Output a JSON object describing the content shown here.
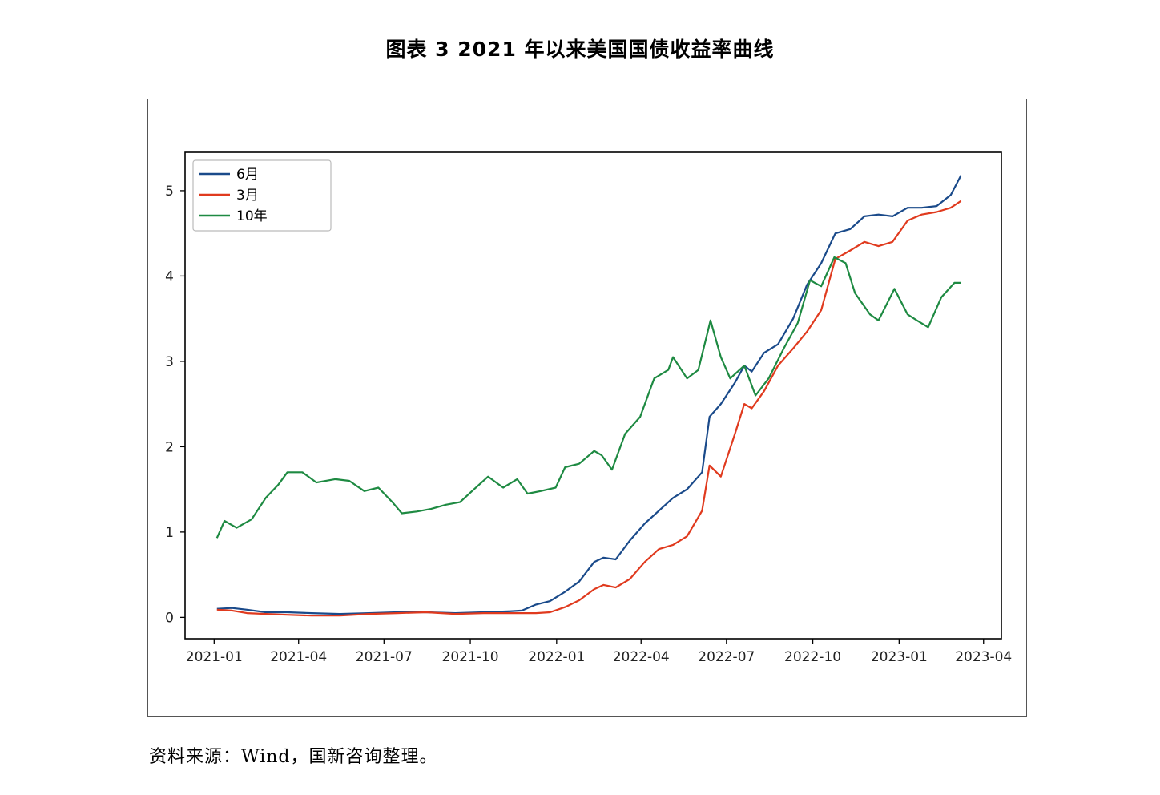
{
  "figure_title": "图表 3 2021 年以来美国国债收益率曲线",
  "source_note": "资料来源：Wind，国新咨询整理。",
  "colors": {
    "6m": "#1a4a8a",
    "3m": "#e03a1e",
    "10y": "#1e8a42"
  },
  "chart_data": {
    "type": "line",
    "title": "",
    "xlabel": "",
    "ylabel": "",
    "x_axis_type": "date",
    "xlim": [
      "2020-12-01",
      "2023-04-20"
    ],
    "ylim": [
      -0.25,
      5.45
    ],
    "x_ticks": [
      {
        "date": "2021-01-01",
        "label": "2021-01"
      },
      {
        "date": "2021-04-01",
        "label": "2021-04"
      },
      {
        "date": "2021-07-01",
        "label": "2021-07"
      },
      {
        "date": "2021-10-01",
        "label": "2021-10"
      },
      {
        "date": "2022-01-01",
        "label": "2022-01"
      },
      {
        "date": "2022-04-01",
        "label": "2022-04"
      },
      {
        "date": "2022-07-01",
        "label": "2022-07"
      },
      {
        "date": "2022-10-01",
        "label": "2022-10"
      },
      {
        "date": "2023-01-01",
        "label": "2023-01"
      },
      {
        "date": "2023-04-01",
        "label": "2023-04"
      }
    ],
    "y_ticks": [
      {
        "value": 0,
        "label": "0"
      },
      {
        "value": 1,
        "label": "1"
      },
      {
        "value": 2,
        "label": "2"
      },
      {
        "value": 3,
        "label": "3"
      },
      {
        "value": 4,
        "label": "4"
      },
      {
        "value": 5,
        "label": "5"
      }
    ],
    "grid": false,
    "legend_position": "top-left",
    "series": [
      {
        "name": "6月",
        "color_key": "6m",
        "points": [
          [
            "2021-01-04",
            0.1
          ],
          [
            "2021-01-20",
            0.11
          ],
          [
            "2021-02-05",
            0.09
          ],
          [
            "2021-02-25",
            0.06
          ],
          [
            "2021-03-20",
            0.06
          ],
          [
            "2021-04-15",
            0.05
          ],
          [
            "2021-05-15",
            0.04
          ],
          [
            "2021-06-15",
            0.05
          ],
          [
            "2021-07-15",
            0.06
          ],
          [
            "2021-08-15",
            0.06
          ],
          [
            "2021-09-15",
            0.05
          ],
          [
            "2021-10-15",
            0.06
          ],
          [
            "2021-11-10",
            0.07
          ],
          [
            "2021-11-25",
            0.08
          ],
          [
            "2021-12-10",
            0.15
          ],
          [
            "2021-12-25",
            0.19
          ],
          [
            "2022-01-10",
            0.3
          ],
          [
            "2022-01-25",
            0.42
          ],
          [
            "2022-02-10",
            0.65
          ],
          [
            "2022-02-20",
            0.7
          ],
          [
            "2022-03-05",
            0.68
          ],
          [
            "2022-03-20",
            0.9
          ],
          [
            "2022-04-05",
            1.1
          ],
          [
            "2022-04-20",
            1.25
          ],
          [
            "2022-05-05",
            1.4
          ],
          [
            "2022-05-20",
            1.5
          ],
          [
            "2022-06-05",
            1.7
          ],
          [
            "2022-06-13",
            2.35
          ],
          [
            "2022-06-25",
            2.5
          ],
          [
            "2022-07-10",
            2.75
          ],
          [
            "2022-07-20",
            2.95
          ],
          [
            "2022-07-28",
            2.88
          ],
          [
            "2022-08-10",
            3.1
          ],
          [
            "2022-08-25",
            3.2
          ],
          [
            "2022-09-10",
            3.5
          ],
          [
            "2022-09-25",
            3.9
          ],
          [
            "2022-10-10",
            4.15
          ],
          [
            "2022-10-25",
            4.5
          ],
          [
            "2022-11-10",
            4.55
          ],
          [
            "2022-11-25",
            4.7
          ],
          [
            "2022-12-10",
            4.72
          ],
          [
            "2022-12-25",
            4.7
          ],
          [
            "2023-01-10",
            4.8
          ],
          [
            "2023-01-25",
            4.8
          ],
          [
            "2023-02-10",
            4.82
          ],
          [
            "2023-02-25",
            4.95
          ],
          [
            "2023-03-08",
            5.18
          ]
        ]
      },
      {
        "name": "3月",
        "color_key": "3m",
        "points": [
          [
            "2021-01-04",
            0.09
          ],
          [
            "2021-01-20",
            0.08
          ],
          [
            "2021-02-05",
            0.05
          ],
          [
            "2021-02-25",
            0.04
          ],
          [
            "2021-03-20",
            0.03
          ],
          [
            "2021-04-15",
            0.02
          ],
          [
            "2021-05-15",
            0.02
          ],
          [
            "2021-06-15",
            0.04
          ],
          [
            "2021-07-15",
            0.05
          ],
          [
            "2021-08-15",
            0.06
          ],
          [
            "2021-09-15",
            0.04
          ],
          [
            "2021-10-15",
            0.05
          ],
          [
            "2021-11-10",
            0.05
          ],
          [
            "2021-11-25",
            0.05
          ],
          [
            "2021-12-10",
            0.05
          ],
          [
            "2021-12-25",
            0.06
          ],
          [
            "2022-01-10",
            0.12
          ],
          [
            "2022-01-25",
            0.2
          ],
          [
            "2022-02-10",
            0.33
          ],
          [
            "2022-02-20",
            0.38
          ],
          [
            "2022-03-05",
            0.35
          ],
          [
            "2022-03-20",
            0.45
          ],
          [
            "2022-04-05",
            0.65
          ],
          [
            "2022-04-20",
            0.8
          ],
          [
            "2022-05-05",
            0.85
          ],
          [
            "2022-05-20",
            0.95
          ],
          [
            "2022-06-05",
            1.25
          ],
          [
            "2022-06-13",
            1.78
          ],
          [
            "2022-06-25",
            1.65
          ],
          [
            "2022-07-10",
            2.15
          ],
          [
            "2022-07-20",
            2.5
          ],
          [
            "2022-07-28",
            2.45
          ],
          [
            "2022-08-10",
            2.65
          ],
          [
            "2022-08-25",
            2.95
          ],
          [
            "2022-09-10",
            3.15
          ],
          [
            "2022-09-25",
            3.35
          ],
          [
            "2022-10-10",
            3.6
          ],
          [
            "2022-10-25",
            4.2
          ],
          [
            "2022-11-10",
            4.3
          ],
          [
            "2022-11-25",
            4.4
          ],
          [
            "2022-12-10",
            4.35
          ],
          [
            "2022-12-25",
            4.4
          ],
          [
            "2023-01-10",
            4.65
          ],
          [
            "2023-01-25",
            4.72
          ],
          [
            "2023-02-10",
            4.75
          ],
          [
            "2023-02-25",
            4.8
          ],
          [
            "2023-03-08",
            4.88
          ]
        ]
      },
      {
        "name": "10年",
        "color_key": "10y",
        "points": [
          [
            "2021-01-04",
            0.93
          ],
          [
            "2021-01-12",
            1.13
          ],
          [
            "2021-01-25",
            1.05
          ],
          [
            "2021-02-10",
            1.15
          ],
          [
            "2021-02-25",
            1.4
          ],
          [
            "2021-03-10",
            1.55
          ],
          [
            "2021-03-20",
            1.7
          ],
          [
            "2021-04-05",
            1.7
          ],
          [
            "2021-04-20",
            1.58
          ],
          [
            "2021-05-10",
            1.62
          ],
          [
            "2021-05-25",
            1.6
          ],
          [
            "2021-06-10",
            1.48
          ],
          [
            "2021-06-25",
            1.52
          ],
          [
            "2021-07-10",
            1.35
          ],
          [
            "2021-07-20",
            1.22
          ],
          [
            "2021-08-05",
            1.24
          ],
          [
            "2021-08-20",
            1.27
          ],
          [
            "2021-09-05",
            1.32
          ],
          [
            "2021-09-20",
            1.35
          ],
          [
            "2021-10-05",
            1.5
          ],
          [
            "2021-10-20",
            1.65
          ],
          [
            "2021-11-05",
            1.52
          ],
          [
            "2021-11-20",
            1.62
          ],
          [
            "2021-12-01",
            1.45
          ],
          [
            "2021-12-15",
            1.48
          ],
          [
            "2021-12-31",
            1.52
          ],
          [
            "2022-01-10",
            1.76
          ],
          [
            "2022-01-25",
            1.8
          ],
          [
            "2022-02-10",
            1.95
          ],
          [
            "2022-02-18",
            1.9
          ],
          [
            "2022-03-01",
            1.73
          ],
          [
            "2022-03-15",
            2.15
          ],
          [
            "2022-03-31",
            2.35
          ],
          [
            "2022-04-15",
            2.8
          ],
          [
            "2022-04-30",
            2.9
          ],
          [
            "2022-05-05",
            3.05
          ],
          [
            "2022-05-20",
            2.8
          ],
          [
            "2022-06-01",
            2.9
          ],
          [
            "2022-06-14",
            3.48
          ],
          [
            "2022-06-25",
            3.05
          ],
          [
            "2022-07-05",
            2.8
          ],
          [
            "2022-07-20",
            2.95
          ],
          [
            "2022-08-01",
            2.6
          ],
          [
            "2022-08-15",
            2.8
          ],
          [
            "2022-08-31",
            3.15
          ],
          [
            "2022-09-15",
            3.45
          ],
          [
            "2022-09-28",
            3.95
          ],
          [
            "2022-10-10",
            3.88
          ],
          [
            "2022-10-24",
            4.22
          ],
          [
            "2022-11-05",
            4.15
          ],
          [
            "2022-11-15",
            3.8
          ],
          [
            "2022-12-01",
            3.55
          ],
          [
            "2022-12-10",
            3.48
          ],
          [
            "2022-12-27",
            3.85
          ],
          [
            "2023-01-10",
            3.55
          ],
          [
            "2023-01-20",
            3.48
          ],
          [
            "2023-02-01",
            3.4
          ],
          [
            "2023-02-15",
            3.75
          ],
          [
            "2023-03-01",
            3.92
          ],
          [
            "2023-03-08",
            3.92
          ]
        ]
      }
    ]
  }
}
